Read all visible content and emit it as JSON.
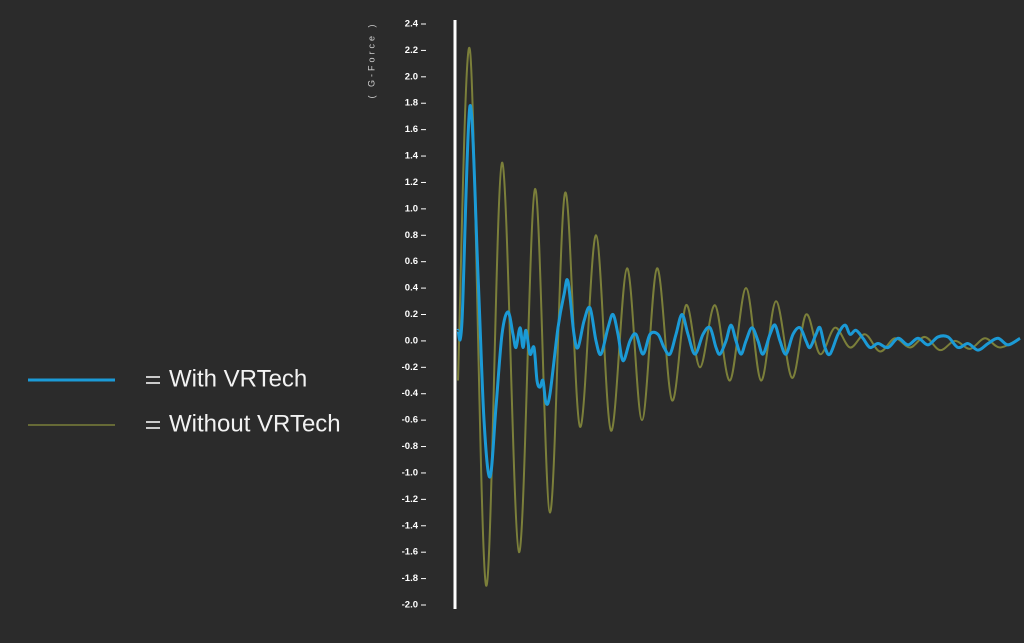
{
  "chart_data": {
    "type": "line",
    "y_label": "( G-Force )",
    "ylim": [
      -2.0,
      2.4
    ],
    "yticks": [
      {
        "value": -2.0,
        "label": "-2.0"
      },
      -1.8,
      -1.6,
      -1.4,
      -1.2,
      {
        "value": -1.0,
        "label": "-1.0"
      },
      -0.8,
      -0.6,
      -0.4,
      -0.2,
      {
        "value": 0.0,
        "label": "0.0"
      },
      0.2,
      0.4,
      0.6,
      0.8,
      {
        "value": 1.0,
        "label": "1.0"
      },
      1.2,
      1.4,
      1.6,
      1.8,
      {
        "value": 2.0,
        "label": "2.0"
      },
      2.2,
      2.4
    ],
    "xlim": [
      0,
      562
    ],
    "series": [
      {
        "name": "With VRTech",
        "color": "#1b9ad6",
        "x": [
          0,
          4,
          12,
          20,
          26,
          32,
          38,
          44,
          50,
          55,
          58,
          62,
          65,
          68,
          72,
          76,
          79,
          82,
          85,
          88,
          92,
          100,
          106,
          110,
          116,
          120,
          126,
          132,
          138,
          143,
          150,
          155,
          160,
          165,
          172,
          178,
          185,
          192,
          200,
          206,
          212,
          218,
          224,
          230,
          237,
          245,
          252,
          258,
          262,
          268,
          273,
          278,
          283,
          288,
          294,
          300,
          305,
          312,
          317,
          322,
          328,
          335,
          342,
          348,
          352,
          358,
          362,
          367,
          372,
          380,
          387,
          392,
          398,
          405,
          412,
          420,
          430,
          440,
          450,
          460,
          470,
          480,
          490,
          500,
          510,
          520,
          530,
          540,
          550,
          562
        ],
        "values": [
          0.08,
          0.15,
          1.78,
          0.5,
          -0.6,
          -1.03,
          -0.5,
          0.05,
          0.22,
          0.05,
          -0.05,
          0.1,
          -0.05,
          0.08,
          -0.1,
          -0.05,
          -0.3,
          -0.35,
          -0.3,
          -0.47,
          -0.4,
          0.1,
          0.35,
          0.45,
          0.05,
          -0.05,
          0.15,
          0.25,
          0.0,
          -0.1,
          0.1,
          0.2,
          0.05,
          -0.15,
          0.0,
          0.05,
          -0.1,
          0.05,
          0.05,
          -0.05,
          -0.1,
          0.05,
          0.2,
          0.05,
          -0.1,
          0.05,
          0.1,
          -0.05,
          -0.1,
          0.0,
          0.12,
          0.0,
          -0.1,
          0.0,
          0.1,
          0.0,
          -0.1,
          0.05,
          0.12,
          0.0,
          -0.1,
          0.05,
          0.1,
          0.0,
          -0.05,
          0.05,
          0.1,
          -0.05,
          -0.1,
          0.05,
          0.12,
          0.05,
          0.08,
          0.02,
          -0.05,
          -0.02,
          -0.05,
          0.02,
          -0.03,
          0.02,
          -0.03,
          0.03,
          0.03,
          -0.05,
          -0.02,
          -0.07,
          -0.02,
          0.02,
          -0.03,
          0.02
        ]
      },
      {
        "name": "Without VRTech",
        "color": "#7b7f3a",
        "x": [
          0,
          12,
          28,
          44,
          61,
          77,
          92,
          107,
          122,
          138,
          153,
          169,
          184,
          199,
          214,
          228,
          242,
          257,
          272,
          288,
          303,
          318,
          334,
          348,
          362,
          377,
          392,
          407,
          422,
          437,
          452,
          467,
          482,
          497,
          512,
          527,
          542,
          562
        ],
        "values": [
          -0.3,
          2.2,
          -1.85,
          1.35,
          -1.6,
          1.15,
          -1.3,
          1.12,
          -0.65,
          0.8,
          -0.68,
          0.55,
          -0.6,
          0.55,
          -0.45,
          0.27,
          -0.2,
          0.27,
          -0.3,
          0.4,
          -0.3,
          0.3,
          -0.28,
          0.2,
          -0.1,
          0.1,
          -0.05,
          0.05,
          -0.08,
          0.02,
          -0.05,
          0.03,
          -0.07,
          0.0,
          -0.06,
          0.02,
          -0.05,
          0.02
        ]
      }
    ]
  }
}
